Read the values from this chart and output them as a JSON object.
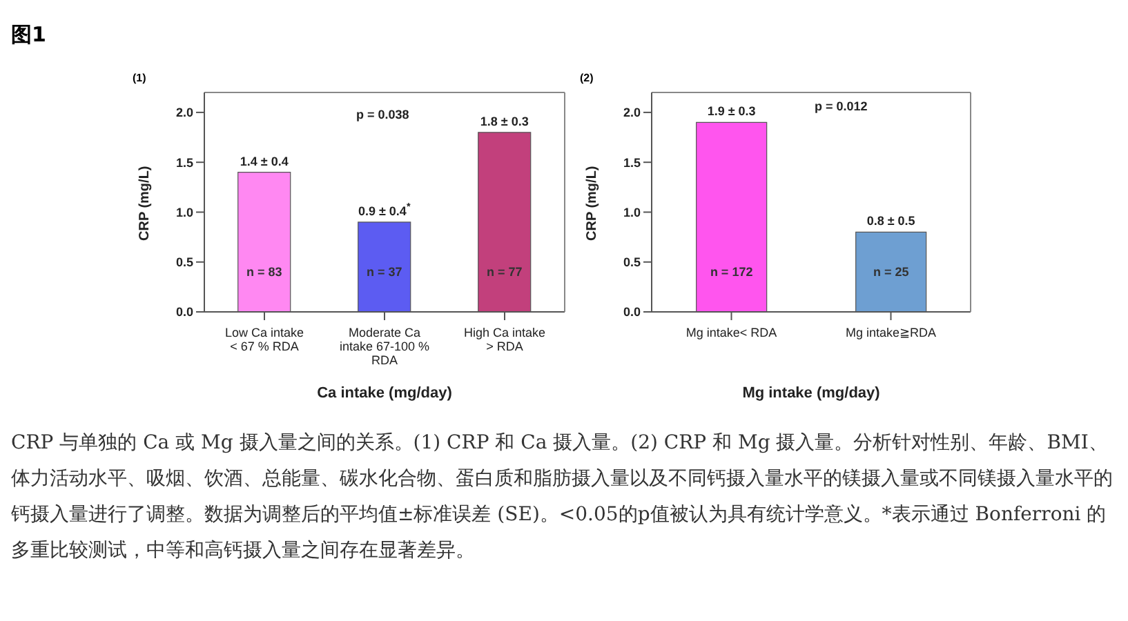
{
  "chart_data": [
    {
      "type": "bar",
      "subtitle": "(1)",
      "xlabel": "Ca intake (mg/day)",
      "ylabel": "CRP (mg/L)",
      "categories": [
        "Low Ca intake\n< 67 % RDA",
        "Moderate Ca\nintake 67-100 %\nRDA",
        "High Ca intake\n> RDA"
      ],
      "values": [
        1.4,
        0.9,
        1.8
      ],
      "colors": [
        "#ff88f2",
        "#5c5cf2",
        "#c2407c"
      ],
      "value_labels": [
        "1.4 ± 0.4",
        "0.9 ± 0.4$^{*}$",
        "1.8 ± 0.3"
      ],
      "ylim": [
        0,
        2.2
      ],
      "yticks": [
        {
          "value": 0,
          "label": "0.0"
        },
        {
          "value": 0.5,
          "label": "0.5"
        },
        {
          "value": 1,
          "label": "1.0"
        },
        {
          "value": 1.5,
          "label": "1.5"
        },
        {
          "value": 2,
          "label": "2.0"
        }
      ],
      "annotations": [
        "图1",
        "p = 0.038",
        "n = 83",
        "n = 37",
        "n = 77"
      ]
    },
    {
      "type": "bar",
      "subtitle": "(2)",
      "xlabel": "Mg intake (mg/day)",
      "ylabel": "CRP (mg/L)",
      "categories": [
        "Mg intake< RDA",
        "Mg intake≧RDA"
      ],
      "values": [
        1.9,
        0.8
      ],
      "colors": [
        "#ff55ee",
        "#6e9fd2"
      ],
      "value_labels": [
        "1.9 ± 0.3",
        "0.8 ± 0.5"
      ],
      "ylim": [
        0,
        2.2
      ],
      "yticks": [
        {
          "value": 0,
          "label": "0.0"
        },
        {
          "value": 0.5,
          "label": "0.5"
        },
        {
          "value": 1,
          "label": "1.0"
        },
        {
          "value": 1.5,
          "label": "1.5"
        },
        {
          "value": 2,
          "label": "2.0"
        }
      ],
      "annotations": [
        "p = 0.012",
        "n = 172",
        "n = 25",
        "CRP 与单独的 Ca 或 Mg 摄入量之间的关系。(1) CRP 和 Ca 摄入量。(2) CRP 和 Mg 摄入量。分析针对性别、年龄、BMI、体力活动水平、吸烟、饮酒、总能量、碳水化合物、蛋白质和脂肪摄入量以及不同钙摄入量水平的镁摄入量或不同镁摄入量水平的钙摄入量进行了调整。数据为调整后的平均值±标准误差 (SE)。<0.05的p值被认为具有统计学意义。*表示通过 Bonferroni 的多重比较测试，中等和高钙摄入量之间存在显著差异。"
      ]
    }
  ]
}
